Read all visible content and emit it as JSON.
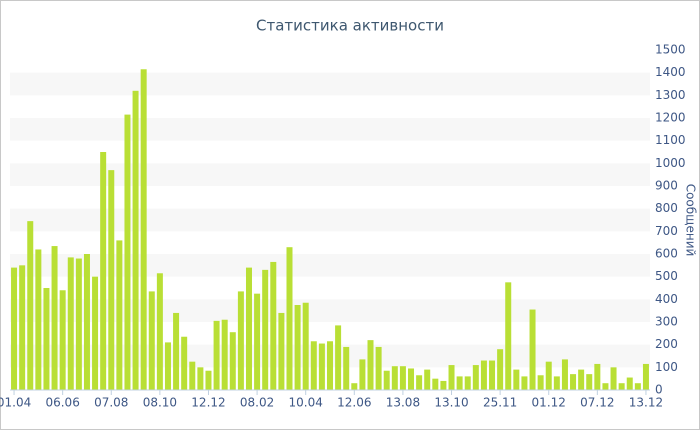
{
  "chart_data": {
    "type": "bar",
    "title": "Статистика активности",
    "y_axis_label": "Сообщений",
    "categories": [
      "01.04",
      null,
      null,
      null,
      null,
      null,
      "06.06",
      null,
      null,
      null,
      null,
      null,
      "07.08",
      null,
      null,
      null,
      null,
      null,
      "08.10",
      null,
      null,
      null,
      null,
      null,
      "12.12",
      null,
      null,
      null,
      null,
      null,
      "08.02",
      null,
      null,
      null,
      null,
      null,
      "10.04",
      null,
      null,
      null,
      null,
      null,
      "12.06",
      null,
      null,
      null,
      null,
      null,
      "13.08",
      null,
      null,
      null,
      null,
      null,
      "13.10",
      null,
      null,
      null,
      null,
      null,
      "25.11",
      null,
      null,
      null,
      null,
      null,
      "01.12",
      null,
      null,
      null,
      null,
      null,
      "07.12",
      null,
      null,
      null,
      null,
      null,
      "13.12"
    ],
    "values": [
      540,
      550,
      745,
      620,
      450,
      635,
      440,
      585,
      580,
      600,
      500,
      1050,
      970,
      660,
      1215,
      1320,
      1415,
      435,
      515,
      210,
      340,
      235,
      125,
      100,
      85,
      305,
      310,
      255,
      435,
      540,
      425,
      530,
      565,
      340,
      630,
      375,
      385,
      215,
      205,
      215,
      285,
      190,
      30,
      135,
      220,
      190,
      85,
      105,
      105,
      95,
      65,
      90,
      50,
      40,
      110,
      60,
      60,
      110,
      130,
      130,
      180,
      475,
      90,
      60,
      355,
      65,
      125,
      60,
      135,
      70,
      90,
      70,
      115,
      30,
      100,
      30,
      55,
      30,
      115
    ],
    "color": "#b9df35",
    "ylim": [
      0,
      1500
    ],
    "yticks": [
      0,
      100,
      200,
      300,
      400,
      500,
      600,
      700,
      800,
      900,
      1000,
      1100,
      1200,
      1300,
      1400,
      1500
    ],
    "alternate_bands": true
  }
}
